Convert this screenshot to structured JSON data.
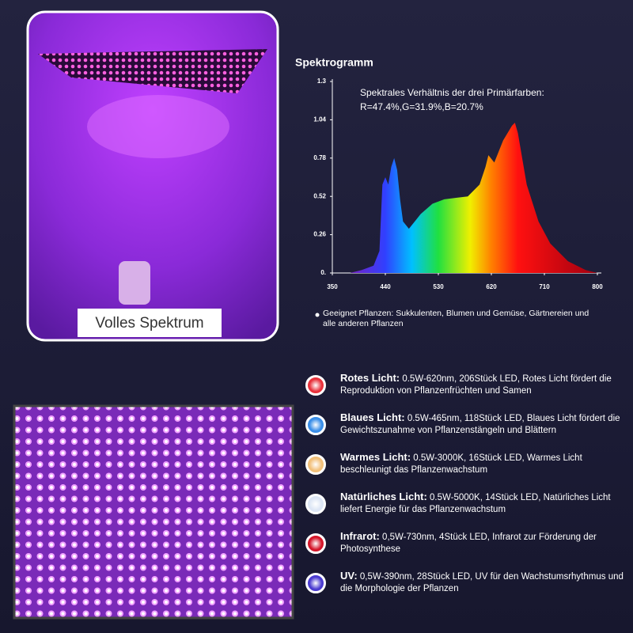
{
  "photo": {
    "caption": "Volles Spektrum"
  },
  "chart_data": {
    "type": "area",
    "title": "Spektrogramm",
    "annotation": [
      "Spektrales Verhältnis der drei Primärfarben:",
      "R=47.4%,G=31.9%,B=20.7%"
    ],
    "x": [
      380,
      400,
      420,
      430,
      435,
      440,
      445,
      450,
      455,
      460,
      465,
      470,
      480,
      490,
      500,
      520,
      540,
      560,
      580,
      600,
      610,
      615,
      625,
      640,
      655,
      660,
      665,
      680,
      700,
      720,
      750,
      780,
      800
    ],
    "values": [
      0,
      0.02,
      0.05,
      0.15,
      0.6,
      0.65,
      0.6,
      0.72,
      0.78,
      0.7,
      0.5,
      0.35,
      0.3,
      0.35,
      0.4,
      0.47,
      0.5,
      0.51,
      0.52,
      0.6,
      0.72,
      0.8,
      0.75,
      0.9,
      1.0,
      1.02,
      0.95,
      0.6,
      0.35,
      0.2,
      0.08,
      0.02,
      0
    ],
    "xlim": [
      350,
      800
    ],
    "ylim": [
      0,
      1.3
    ],
    "xticks": [
      350,
      440,
      530,
      620,
      710,
      800
    ],
    "yticks": [
      {
        "value": 0,
        "label": "0."
      },
      0.26,
      0.52,
      0.78,
      1.04,
      1.3
    ]
  },
  "note": "Geeignet Pflanzen: Sukkulenten, Blumen und Gemüse, Gärtnereien und alle anderen Pflanzen",
  "leds": [
    {
      "name": "Rotes Licht:",
      "text": "0.5W-620nm, 206Stück LED, Rotes Licht fördert die Reproduktion von Pflanzenfrüchten und Samen",
      "color": "#e8323c"
    },
    {
      "name": "Blaues Licht:",
      "text": "0.5W-465nm, 118Stück LED, Blaues Licht fördert die Gewichtszunahme von Pflanzenstängeln und Blättern",
      "color": "#3a8ee8"
    },
    {
      "name": "Warmes Licht:",
      "text": "0.5W-3000K, 16Stück LED, Warmes Licht beschleunigt das Pflanzenwachstum",
      "color": "#f2c07a"
    },
    {
      "name": "Natürliches Licht:",
      "text": "0.5W-5000K, 14Stück LED, Natürliches Licht liefert Energie für das Pflanzenwachstum",
      "color": "#dde6f5"
    },
    {
      "name": "Infrarot:",
      "text": "0,5W-730nm, 4Stück LED, Infrarot zur Förderung der Photosynthese",
      "color": "#d4162a"
    },
    {
      "name": "UV:",
      "text": "0,5W-390nm, 28Stück LED, UV für den Wachstumsrhythmus und die Morphologie der Pflanzen",
      "color": "#4a3ad0"
    }
  ]
}
